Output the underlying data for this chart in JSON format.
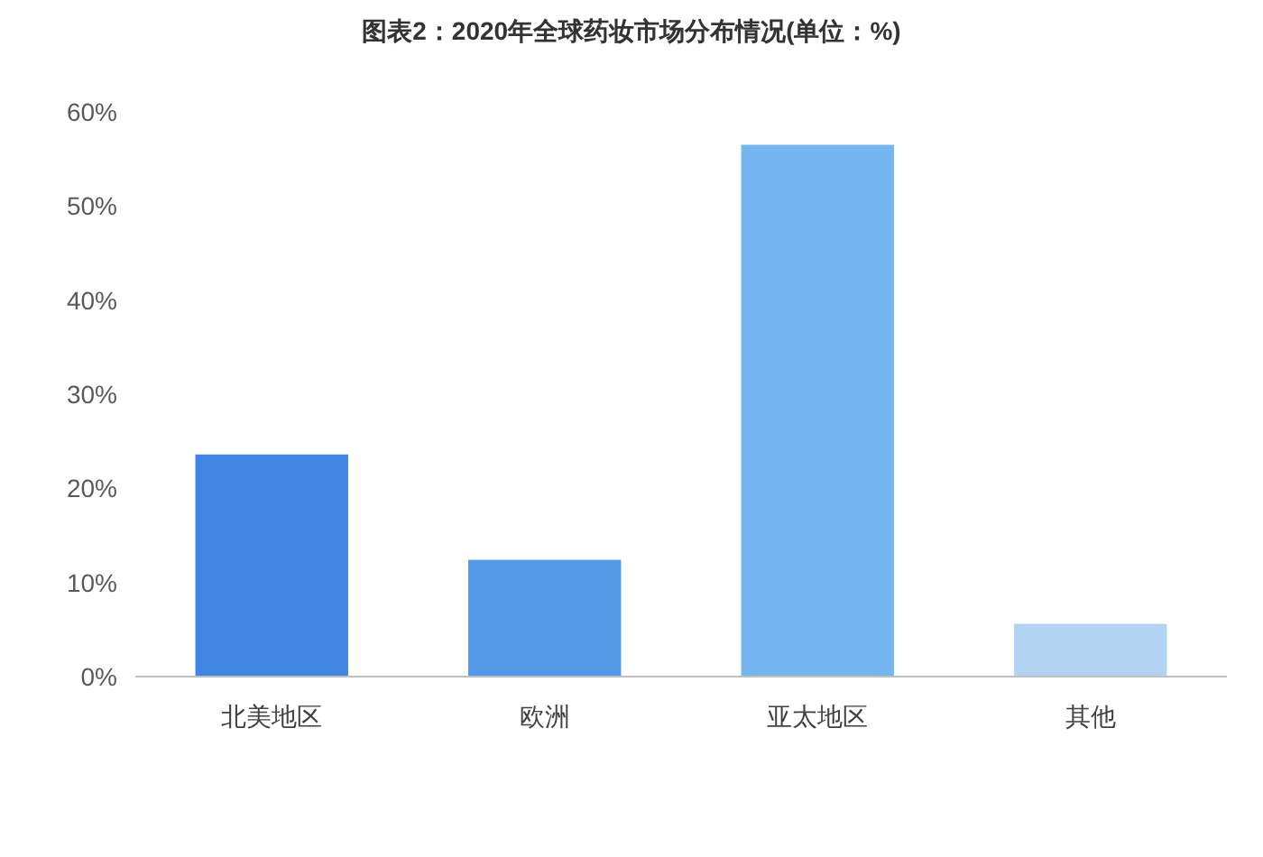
{
  "chart_data": {
    "type": "bar",
    "title": "图表2：2020年全球药妆市场分布情况(单位：%)",
    "categories": [
      "北美地区",
      "欧洲",
      "亚太地区",
      "其他"
    ],
    "values": [
      23.6,
      12.4,
      56.5,
      5.6
    ],
    "colors": [
      "#3f86e3",
      "#5499e8",
      "#73b6f0",
      "#b3d3f3"
    ],
    "ylim": [
      0,
      60
    ],
    "yticks": [
      {
        "value": 0,
        "label": "0%"
      },
      {
        "value": 10,
        "label": "10%"
      },
      {
        "value": 20,
        "label": "20%"
      },
      {
        "value": 30,
        "label": "30%"
      },
      {
        "value": 40,
        "label": "40%"
      },
      {
        "value": 50,
        "label": "50%"
      },
      {
        "value": 60,
        "label": "60%"
      }
    ],
    "grid": false
  }
}
